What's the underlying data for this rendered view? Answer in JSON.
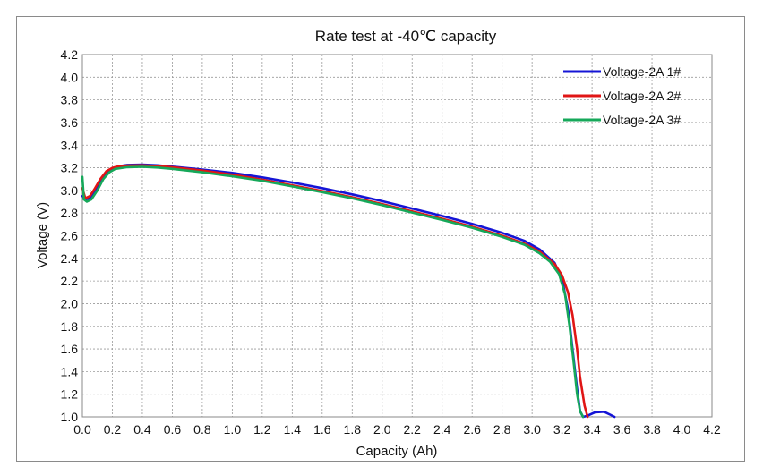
{
  "chart_data": {
    "type": "line",
    "title": "Rate test at -40℃ capacity",
    "xlabel": "Capacity (Ah)",
    "ylabel": "Voltage (V)",
    "xlim": [
      0.0,
      4.2
    ],
    "ylim": [
      1.0,
      4.2
    ],
    "x_ticks": [
      "0.0",
      "0.2",
      "0.4",
      "0.6",
      "0.8",
      "1.0",
      "1.2",
      "1.4",
      "1.6",
      "1.8",
      "2.0",
      "2.2",
      "2.4",
      "2.6",
      "2.8",
      "3.0",
      "3.2",
      "3.4",
      "3.6",
      "3.8",
      "4.0",
      "4.2"
    ],
    "y_ticks": [
      "1.0",
      "1.2",
      "1.4",
      "1.6",
      "1.8",
      "2.0",
      "2.2",
      "2.4",
      "2.6",
      "2.8",
      "3.0",
      "3.2",
      "3.4",
      "3.6",
      "3.8",
      "4.0",
      "4.2"
    ],
    "grid": true,
    "legend_position": "top-right",
    "series": [
      {
        "name": "Voltage-2A 1#",
        "color": "#1515d6",
        "points": [
          [
            0.0,
            2.95
          ],
          [
            0.02,
            2.92
          ],
          [
            0.05,
            2.93
          ],
          [
            0.08,
            2.98
          ],
          [
            0.12,
            3.07
          ],
          [
            0.16,
            3.15
          ],
          [
            0.2,
            3.19
          ],
          [
            0.25,
            3.215
          ],
          [
            0.3,
            3.225
          ],
          [
            0.4,
            3.228
          ],
          [
            0.5,
            3.222
          ],
          [
            0.6,
            3.21
          ],
          [
            0.8,
            3.185
          ],
          [
            1.0,
            3.155
          ],
          [
            1.2,
            3.115
          ],
          [
            1.4,
            3.07
          ],
          [
            1.6,
            3.02
          ],
          [
            1.8,
            2.965
          ],
          [
            2.0,
            2.905
          ],
          [
            2.2,
            2.84
          ],
          [
            2.4,
            2.775
          ],
          [
            2.6,
            2.705
          ],
          [
            2.8,
            2.625
          ],
          [
            2.95,
            2.555
          ],
          [
            3.05,
            2.48
          ],
          [
            3.15,
            2.36
          ],
          [
            3.2,
            2.22
          ],
          [
            3.24,
            1.95
          ],
          [
            3.27,
            1.6
          ],
          [
            3.3,
            1.25
          ],
          [
            3.32,
            1.05
          ],
          [
            3.34,
            1.0
          ],
          [
            3.37,
            1.01
          ],
          [
            3.42,
            1.04
          ],
          [
            3.48,
            1.045
          ],
          [
            3.52,
            1.02
          ],
          [
            3.55,
            1.0
          ]
        ]
      },
      {
        "name": "Voltage-2A 2#",
        "color": "#e01515",
        "points": [
          [
            0.0,
            3.02
          ],
          [
            0.02,
            2.93
          ],
          [
            0.05,
            2.95
          ],
          [
            0.08,
            3.01
          ],
          [
            0.12,
            3.1
          ],
          [
            0.16,
            3.17
          ],
          [
            0.2,
            3.2
          ],
          [
            0.25,
            3.215
          ],
          [
            0.3,
            3.22
          ],
          [
            0.4,
            3.222
          ],
          [
            0.5,
            3.216
          ],
          [
            0.6,
            3.205
          ],
          [
            0.8,
            3.175
          ],
          [
            1.0,
            3.14
          ],
          [
            1.2,
            3.095
          ],
          [
            1.4,
            3.045
          ],
          [
            1.6,
            2.995
          ],
          [
            1.8,
            2.94
          ],
          [
            2.0,
            2.88
          ],
          [
            2.2,
            2.815
          ],
          [
            2.4,
            2.75
          ],
          [
            2.6,
            2.68
          ],
          [
            2.8,
            2.6
          ],
          [
            2.95,
            2.53
          ],
          [
            3.05,
            2.46
          ],
          [
            3.15,
            2.35
          ],
          [
            3.2,
            2.25
          ],
          [
            3.24,
            2.1
          ],
          [
            3.27,
            1.9
          ],
          [
            3.3,
            1.6
          ],
          [
            3.32,
            1.35
          ],
          [
            3.35,
            1.1
          ],
          [
            3.37,
            1.0
          ]
        ]
      },
      {
        "name": "Voltage-2A 3#",
        "color": "#16a85a",
        "points": [
          [
            0.0,
            3.12
          ],
          [
            0.01,
            2.92
          ],
          [
            0.03,
            2.9
          ],
          [
            0.06,
            2.92
          ],
          [
            0.1,
            3.0
          ],
          [
            0.14,
            3.1
          ],
          [
            0.18,
            3.16
          ],
          [
            0.22,
            3.19
          ],
          [
            0.3,
            3.205
          ],
          [
            0.4,
            3.208
          ],
          [
            0.5,
            3.202
          ],
          [
            0.6,
            3.19
          ],
          [
            0.8,
            3.16
          ],
          [
            1.0,
            3.125
          ],
          [
            1.2,
            3.085
          ],
          [
            1.4,
            3.035
          ],
          [
            1.6,
            2.985
          ],
          [
            1.8,
            2.93
          ],
          [
            2.0,
            2.87
          ],
          [
            2.2,
            2.805
          ],
          [
            2.4,
            2.74
          ],
          [
            2.6,
            2.67
          ],
          [
            2.8,
            2.59
          ],
          [
            2.95,
            2.52
          ],
          [
            3.05,
            2.445
          ],
          [
            3.12,
            2.37
          ],
          [
            3.18,
            2.26
          ],
          [
            3.22,
            2.08
          ],
          [
            3.25,
            1.8
          ],
          [
            3.28,
            1.45
          ],
          [
            3.3,
            1.2
          ],
          [
            3.32,
            1.05
          ],
          [
            3.34,
            1.0
          ]
        ]
      }
    ]
  }
}
